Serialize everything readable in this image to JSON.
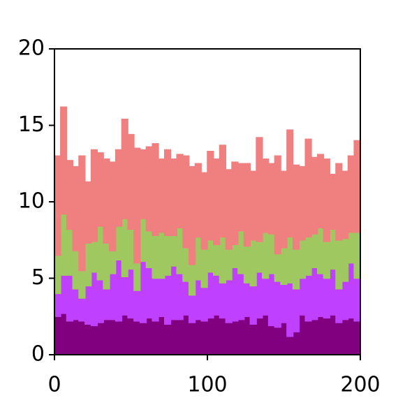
{
  "chart_data": {
    "type": "stacked_step_area",
    "x": [
      0,
      4,
      8,
      12,
      16,
      20,
      24,
      28,
      32,
      36,
      40,
      44,
      48,
      52,
      56,
      60,
      64,
      68,
      72,
      76,
      80,
      84,
      88,
      92,
      96,
      100,
      104,
      108,
      112,
      116,
      120,
      124,
      128,
      132,
      136,
      140,
      144,
      148,
      152,
      156,
      160,
      164,
      168,
      172,
      176,
      180,
      184,
      188,
      192,
      196,
      200
    ],
    "series": [
      {
        "color": "#800080",
        "values": [
          2.5,
          2.7,
          2.2,
          2.3,
          2.2,
          2.0,
          1.9,
          2.1,
          2.3,
          2.3,
          2.2,
          2.6,
          2.4,
          2.2,
          2.1,
          2.4,
          2.2,
          2.5,
          2.0,
          2.3,
          2.3,
          2.6,
          2.1,
          2.3,
          2.2,
          2.4,
          2.6,
          2.4,
          2.1,
          2.2,
          2.3,
          2.5,
          2.0,
          2.4,
          2.6,
          1.9,
          1.8,
          2.1,
          1.2,
          1.5,
          2.6,
          2.2,
          2.3,
          2.5,
          2.4,
          2.6,
          2.1,
          2.3,
          2.4,
          2.2,
          2.5
        ]
      },
      {
        "color": "#bf40ff",
        "values": [
          1.5,
          2.5,
          3.0,
          2.0,
          1.5,
          2.5,
          3.5,
          2.8,
          2.0,
          3.0,
          4.0,
          2.5,
          3.2,
          2.0,
          4.0,
          3.3,
          2.8,
          2.5,
          3.2,
          3.5,
          3.0,
          2.2,
          1.8,
          2.6,
          2.2,
          3.0,
          2.6,
          2.3,
          2.8,
          3.5,
          3.0,
          2.2,
          2.5,
          3.0,
          2.4,
          3.4,
          3.0,
          2.5,
          3.5,
          2.8,
          2.4,
          3.0,
          3.4,
          2.8,
          2.6,
          3.0,
          2.2,
          2.5,
          3.6,
          2.8,
          3.5
        ]
      },
      {
        "color": "#a0c860",
        "values": [
          2.5,
          4.0,
          3.0,
          2.5,
          1.8,
          2.8,
          2.0,
          3.5,
          3.0,
          1.5,
          2.2,
          3.8,
          2.6,
          1.8,
          2.8,
          2.4,
          2.8,
          3.0,
          2.6,
          2.0,
          3.0,
          2.2,
          2.0,
          2.8,
          2.5,
          2.1,
          2.0,
          3.0,
          2.0,
          1.5,
          2.8,
          2.4,
          3.0,
          2.0,
          3.0,
          2.6,
          1.8,
          2.4,
          3.0,
          2.6,
          2.5,
          2.5,
          2.2,
          3.0,
          2.4,
          2.6,
          3.2,
          2.8,
          2.0,
          3.0,
          1.8
        ]
      },
      {
        "color": "#f08080",
        "values": [
          6.5,
          7.0,
          4.5,
          5.5,
          7.5,
          4.0,
          6.0,
          4.8,
          5.5,
          5.8,
          5.0,
          6.5,
          6.2,
          7.5,
          4.5,
          5.5,
          6.0,
          4.8,
          5.6,
          5.0,
          4.8,
          6.0,
          6.4,
          4.8,
          5.0,
          5.8,
          5.6,
          6.0,
          5.2,
          5.4,
          4.4,
          5.4,
          4.5,
          6.8,
          4.8,
          4.6,
          6.4,
          5.0,
          7.0,
          5.5,
          4.8,
          6.4,
          5.0,
          4.8,
          5.4,
          3.6,
          5.0,
          4.4,
          5.0,
          6.0,
          7.5
        ]
      }
    ],
    "xlim": [
      0,
      200
    ],
    "xticks": [
      0,
      100,
      200
    ],
    "ylim": [
      0,
      20
    ],
    "yticks": [
      0,
      5,
      10,
      15,
      20
    ]
  }
}
